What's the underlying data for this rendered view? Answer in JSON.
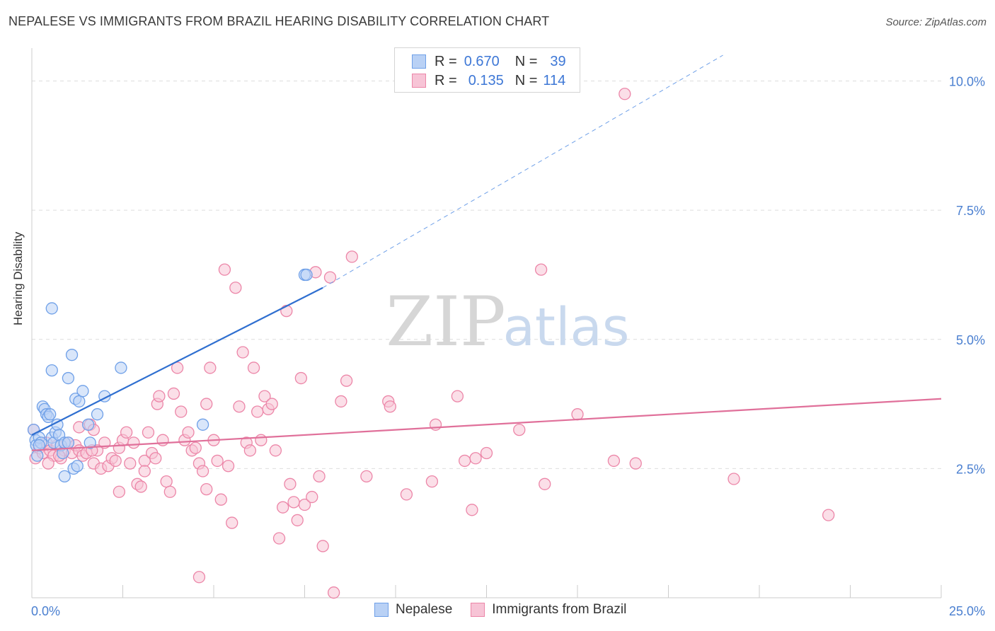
{
  "title": "NEPALESE VS IMMIGRANTS FROM BRAZIL HEARING DISABILITY CORRELATION CHART",
  "source": "Source: ZipAtlas.com",
  "watermark": {
    "left": "ZIP",
    "right": "atlas"
  },
  "colors": {
    "blue": "#6fa0e8",
    "blue_fill": "#b9d1f5",
    "blue_line": "#2f6fd0",
    "pink": "#ec86a8",
    "pink_fill": "#f7c4d6",
    "pink_line": "#e0709a",
    "axis_text": "#4a7fd0",
    "grid": "#dddddd"
  },
  "legend_top": {
    "rows": [
      {
        "r_label": "R =",
        "r_value": "0.670",
        "n_label": "N =",
        "n_value": "39"
      },
      {
        "r_label": "R =",
        "r_value": "0.135",
        "n_label": "N =",
        "n_value": "114"
      }
    ]
  },
  "legend_bottom": {
    "items": [
      "Nepalese",
      "Immigrants from Brazil"
    ]
  },
  "chart_data": {
    "type": "scatter",
    "title": "NEPALESE VS IMMIGRANTS FROM BRAZIL HEARING DISABILITY CORRELATION CHART",
    "xlabel": "",
    "ylabel": "Hearing Disability",
    "xlim": [
      0,
      25
    ],
    "ylim": [
      0,
      10.5
    ],
    "x_tick_labels": [
      "0.0%",
      "25.0%"
    ],
    "y_ticks": [
      2.5,
      5.0,
      7.5,
      10.0
    ],
    "y_tick_labels": [
      "2.5%",
      "5.0%",
      "7.5%",
      "10.0%"
    ],
    "grid": true,
    "legend_position": "top-center",
    "series": [
      {
        "name": "Nepalese",
        "r": 0.67,
        "n": 39,
        "trend": {
          "x0": 0.0,
          "y0": 3.15,
          "x1": 8.0,
          "y1": 6.0,
          "dashed_to_x": 19.0,
          "dashed_to_y": 10.5
        },
        "points": [
          [
            0.05,
            3.25
          ],
          [
            0.1,
            3.05
          ],
          [
            0.12,
            2.95
          ],
          [
            0.15,
            2.75
          ],
          [
            0.2,
            3.1
          ],
          [
            0.25,
            3.0
          ],
          [
            0.3,
            3.7
          ],
          [
            0.35,
            3.65
          ],
          [
            0.4,
            3.55
          ],
          [
            0.45,
            3.5
          ],
          [
            0.5,
            3.55
          ],
          [
            0.55,
            3.1
          ],
          [
            0.6,
            3.0
          ],
          [
            0.55,
            5.6
          ],
          [
            0.55,
            4.4
          ],
          [
            0.65,
            3.2
          ],
          [
            0.7,
            3.35
          ],
          [
            0.75,
            3.15
          ],
          [
            0.8,
            2.95
          ],
          [
            0.85,
            2.8
          ],
          [
            0.9,
            3.0
          ],
          [
            0.9,
            2.35
          ],
          [
            1.0,
            4.25
          ],
          [
            1.0,
            3.0
          ],
          [
            1.1,
            4.7
          ],
          [
            1.15,
            2.5
          ],
          [
            1.2,
            3.85
          ],
          [
            1.25,
            2.55
          ],
          [
            1.3,
            3.8
          ],
          [
            1.4,
            4.0
          ],
          [
            1.55,
            3.35
          ],
          [
            1.6,
            3.0
          ],
          [
            1.8,
            3.55
          ],
          [
            2.0,
            3.9
          ],
          [
            2.45,
            4.45
          ],
          [
            4.7,
            3.35
          ],
          [
            7.5,
            6.25
          ],
          [
            7.55,
            6.25
          ],
          [
            0.2,
            2.95
          ]
        ]
      },
      {
        "name": "Immigrants from Brazil",
        "r": 0.135,
        "n": 114,
        "trend": {
          "x0": 0.0,
          "y0": 2.85,
          "x1": 25.0,
          "y1": 3.85
        },
        "points": [
          [
            0.05,
            3.25
          ],
          [
            0.1,
            2.7
          ],
          [
            0.2,
            2.9
          ],
          [
            0.3,
            2.8
          ],
          [
            0.4,
            3.0
          ],
          [
            0.5,
            2.85
          ],
          [
            0.6,
            2.75
          ],
          [
            0.7,
            2.95
          ],
          [
            0.8,
            2.7
          ],
          [
            0.9,
            2.85
          ],
          [
            1.0,
            3.0
          ],
          [
            1.1,
            2.8
          ],
          [
            1.2,
            2.95
          ],
          [
            1.3,
            2.85
          ],
          [
            1.4,
            2.75
          ],
          [
            1.5,
            2.8
          ],
          [
            1.6,
            3.35
          ],
          [
            1.7,
            2.6
          ],
          [
            1.7,
            3.25
          ],
          [
            1.8,
            2.85
          ],
          [
            1.9,
            2.5
          ],
          [
            2.0,
            3.0
          ],
          [
            2.1,
            2.55
          ],
          [
            2.2,
            2.7
          ],
          [
            2.3,
            2.65
          ],
          [
            2.4,
            2.9
          ],
          [
            2.5,
            3.05
          ],
          [
            2.6,
            3.2
          ],
          [
            2.7,
            2.6
          ],
          [
            2.8,
            3.0
          ],
          [
            2.9,
            2.2
          ],
          [
            3.0,
            2.15
          ],
          [
            3.1,
            2.65
          ],
          [
            3.2,
            3.2
          ],
          [
            3.3,
            2.8
          ],
          [
            3.4,
            2.7
          ],
          [
            3.45,
            3.75
          ],
          [
            3.5,
            3.9
          ],
          [
            3.6,
            3.05
          ],
          [
            3.7,
            2.25
          ],
          [
            3.8,
            2.05
          ],
          [
            3.9,
            3.95
          ],
          [
            4.0,
            4.45
          ],
          [
            4.1,
            3.6
          ],
          [
            4.2,
            3.05
          ],
          [
            4.3,
            3.2
          ],
          [
            4.4,
            2.85
          ],
          [
            4.5,
            2.9
          ],
          [
            4.6,
            2.6
          ],
          [
            4.7,
            2.45
          ],
          [
            4.8,
            2.1
          ],
          [
            4.8,
            3.75
          ],
          [
            4.9,
            4.45
          ],
          [
            5.0,
            3.05
          ],
          [
            5.1,
            2.65
          ],
          [
            5.2,
            1.9
          ],
          [
            5.3,
            6.35
          ],
          [
            5.4,
            2.55
          ],
          [
            5.5,
            1.45
          ],
          [
            5.6,
            6.0
          ],
          [
            5.7,
            3.7
          ],
          [
            5.8,
            4.75
          ],
          [
            5.9,
            3.0
          ],
          [
            6.0,
            2.85
          ],
          [
            6.1,
            4.45
          ],
          [
            6.2,
            3.6
          ],
          [
            6.3,
            3.05
          ],
          [
            6.4,
            3.9
          ],
          [
            6.5,
            3.65
          ],
          [
            6.6,
            3.75
          ],
          [
            6.7,
            2.85
          ],
          [
            6.8,
            1.15
          ],
          [
            6.9,
            1.75
          ],
          [
            7.0,
            5.55
          ],
          [
            7.1,
            2.2
          ],
          [
            7.2,
            1.85
          ],
          [
            7.3,
            1.5
          ],
          [
            7.4,
            4.25
          ],
          [
            7.5,
            1.8
          ],
          [
            7.7,
            1.95
          ],
          [
            7.8,
            6.3
          ],
          [
            7.9,
            2.35
          ],
          [
            8.0,
            1.0
          ],
          [
            8.2,
            6.2
          ],
          [
            8.3,
            0.1
          ],
          [
            8.5,
            3.8
          ],
          [
            8.65,
            4.2
          ],
          [
            8.8,
            6.6
          ],
          [
            9.2,
            2.35
          ],
          [
            9.8,
            3.8
          ],
          [
            9.85,
            3.7
          ],
          [
            10.3,
            2.0
          ],
          [
            11.0,
            2.25
          ],
          [
            11.1,
            3.35
          ],
          [
            11.7,
            3.9
          ],
          [
            11.9,
            2.65
          ],
          [
            12.1,
            1.7
          ],
          [
            12.2,
            2.7
          ],
          [
            12.5,
            2.8
          ],
          [
            13.4,
            3.25
          ],
          [
            14.0,
            6.35
          ],
          [
            14.1,
            2.2
          ],
          [
            15.0,
            3.55
          ],
          [
            16.0,
            2.65
          ],
          [
            16.3,
            9.75
          ],
          [
            16.6,
            2.6
          ],
          [
            19.3,
            2.3
          ],
          [
            21.9,
            1.6
          ],
          [
            4.6,
            0.4
          ],
          [
            3.1,
            2.45
          ],
          [
            2.4,
            2.05
          ],
          [
            1.3,
            3.3
          ],
          [
            0.75,
            2.75
          ],
          [
            0.45,
            2.6
          ],
          [
            1.65,
            2.85
          ]
        ]
      }
    ]
  }
}
